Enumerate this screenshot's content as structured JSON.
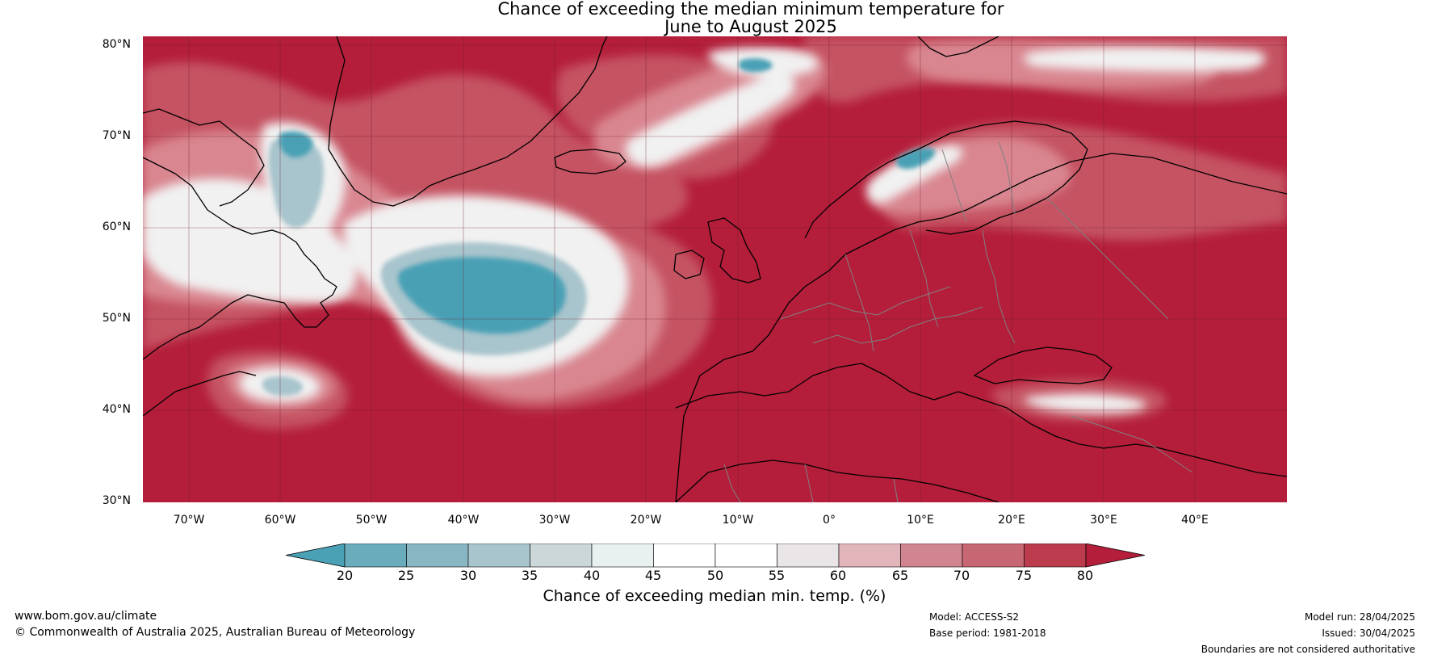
{
  "title": {
    "line1": "Chance of exceeding the median minimum temperature for",
    "line2": "June to August 2025"
  },
  "axes": {
    "latitudes": [
      "80°N",
      "70°N",
      "60°N",
      "50°N",
      "40°N",
      "30°N"
    ],
    "longitudes": [
      "70°W",
      "60°W",
      "50°W",
      "40°W",
      "30°W",
      "20°W",
      "10°W",
      "0°",
      "10°E",
      "20°E",
      "30°E",
      "40°E"
    ]
  },
  "legend": {
    "label": "Chance of exceeding median min. temp. (%)",
    "ticks": [
      "20",
      "25",
      "30",
      "35",
      "40",
      "45",
      "50",
      "55",
      "60",
      "65",
      "70",
      "75",
      "80"
    ],
    "colors": [
      "#4aa0b5",
      "#6aabbc",
      "#89b6c3",
      "#a8c4cc",
      "#cbd7d9",
      "#e9f0f0",
      "#ffffff",
      "#ffffff",
      "#eae6e7",
      "#e2b5bb",
      "#d18590",
      "#c76773",
      "#bc3c4e",
      "#b41e3a"
    ]
  },
  "map_colors": {
    "very_high": "#b41e3a",
    "high": "#c55262",
    "mid_high": "#d98690",
    "near_median": "#f1f1f1",
    "low": "#a8c4cc",
    "very_low": "#4aa0b5",
    "land_outline": "#000000",
    "border": "#808080"
  },
  "footer": {
    "website": "www.bom.gov.au/climate",
    "copyright": "© Commonwealth of Australia 2025, Australian Bureau of Meteorology",
    "model": "Model: ACCESS-S2",
    "base_period": "Base period: 1981-2018",
    "model_run": "Model run: 28/04/2025",
    "issued": "Issued: 30/04/2025",
    "disclaimer": "Boundaries are not considered authoritative"
  }
}
